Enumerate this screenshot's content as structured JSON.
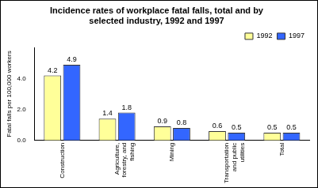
{
  "chart_data": {
    "type": "bar",
    "title": [
      "Incidence rates of workplace fatal falls, total and by",
      "selected industry, 1992 and 1997"
    ],
    "y_label": "Fatal falls per 100,000 workers",
    "categories": [
      "Construction",
      "Agriculture, forestry, and fishing",
      "Mining",
      "Transportation and public utilities",
      "Total"
    ],
    "series": [
      {
        "name": "1992",
        "color": "#ffff99",
        "values": [
          4.2,
          1.4,
          0.9,
          0.6,
          0.5
        ]
      },
      {
        "name": "1997",
        "color": "#3366ff",
        "values": [
          4.9,
          1.8,
          0.8,
          0.5,
          0.5
        ]
      }
    ],
    "ylim": [
      0,
      6
    ],
    "yticks": [
      {
        "value": 0,
        "label": "0.0"
      },
      {
        "value": 2,
        "label": "2.0"
      },
      {
        "value": 4,
        "label": "4.0"
      }
    ],
    "grid": false,
    "legend": "top-right",
    "data_labels": true
  }
}
